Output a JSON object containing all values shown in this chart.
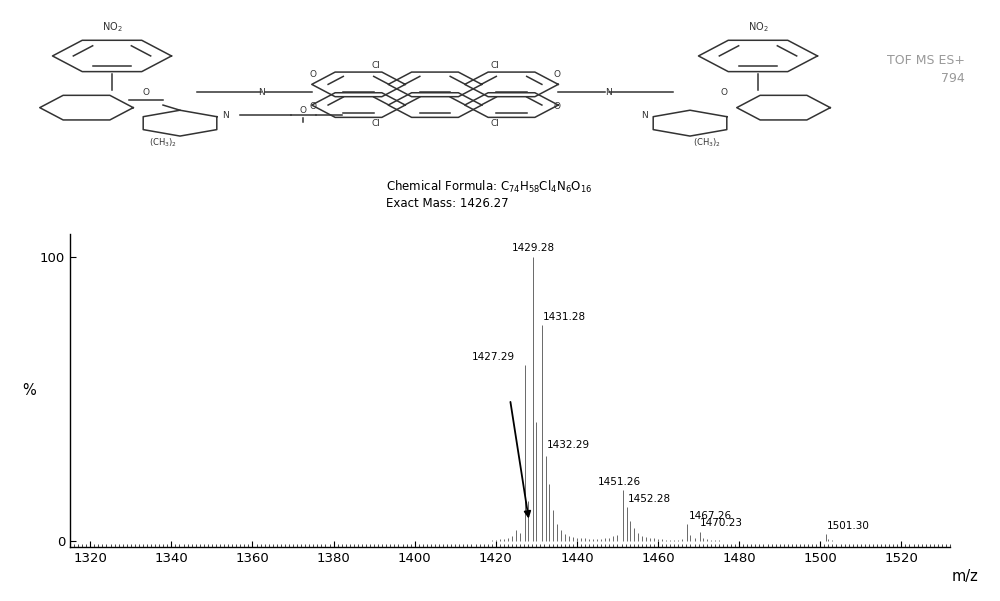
{
  "xlabel": "m/z",
  "ylabel": "%",
  "xlim": [
    1315,
    1532
  ],
  "ylim": [
    -2,
    108
  ],
  "xticks": [
    1320,
    1340,
    1360,
    1380,
    1400,
    1420,
    1440,
    1460,
    1480,
    1500,
    1520
  ],
  "background_color": "#ffffff",
  "tof_line1": "TOF MS ES+",
  "tof_line2": "794",
  "chem_formula": "Chemical Formula: C₇₄H₅₈Cl₄N₆O₁₆",
  "exact_mass": "Exact Mass: 1426.27",
  "peaks": [
    {
      "mz": 1320.0,
      "intensity": 0.15
    },
    {
      "mz": 1322.0,
      "intensity": 0.12
    },
    {
      "mz": 1324.0,
      "intensity": 0.1
    },
    {
      "mz": 1326.0,
      "intensity": 0.12
    },
    {
      "mz": 1328.0,
      "intensity": 0.1
    },
    {
      "mz": 1330.0,
      "intensity": 0.15
    },
    {
      "mz": 1332.0,
      "intensity": 0.1
    },
    {
      "mz": 1334.0,
      "intensity": 0.12
    },
    {
      "mz": 1336.0,
      "intensity": 0.1
    },
    {
      "mz": 1338.0,
      "intensity": 0.1
    },
    {
      "mz": 1340.0,
      "intensity": 0.15
    },
    {
      "mz": 1342.0,
      "intensity": 0.1
    },
    {
      "mz": 1344.0,
      "intensity": 0.1
    },
    {
      "mz": 1346.0,
      "intensity": 0.12
    },
    {
      "mz": 1348.0,
      "intensity": 0.1
    },
    {
      "mz": 1350.0,
      "intensity": 0.15
    },
    {
      "mz": 1352.0,
      "intensity": 0.1
    },
    {
      "mz": 1354.0,
      "intensity": 0.1
    },
    {
      "mz": 1356.0,
      "intensity": 0.12
    },
    {
      "mz": 1358.0,
      "intensity": 0.1
    },
    {
      "mz": 1360.0,
      "intensity": 0.15
    },
    {
      "mz": 1362.0,
      "intensity": 0.1
    },
    {
      "mz": 1364.0,
      "intensity": 0.1
    },
    {
      "mz": 1366.0,
      "intensity": 0.12
    },
    {
      "mz": 1368.0,
      "intensity": 0.1
    },
    {
      "mz": 1370.0,
      "intensity": 0.15
    },
    {
      "mz": 1372.0,
      "intensity": 0.1
    },
    {
      "mz": 1374.0,
      "intensity": 0.1
    },
    {
      "mz": 1376.0,
      "intensity": 0.12
    },
    {
      "mz": 1378.0,
      "intensity": 0.1
    },
    {
      "mz": 1380.0,
      "intensity": 0.15
    },
    {
      "mz": 1382.0,
      "intensity": 0.1
    },
    {
      "mz": 1384.0,
      "intensity": 0.1
    },
    {
      "mz": 1386.0,
      "intensity": 0.12
    },
    {
      "mz": 1388.0,
      "intensity": 0.1
    },
    {
      "mz": 1390.0,
      "intensity": 0.15
    },
    {
      "mz": 1392.0,
      "intensity": 0.1
    },
    {
      "mz": 1394.0,
      "intensity": 0.1
    },
    {
      "mz": 1396.0,
      "intensity": 0.12
    },
    {
      "mz": 1398.0,
      "intensity": 0.1
    },
    {
      "mz": 1400.0,
      "intensity": 0.2
    },
    {
      "mz": 1402.0,
      "intensity": 0.1
    },
    {
      "mz": 1404.0,
      "intensity": 0.1
    },
    {
      "mz": 1406.0,
      "intensity": 0.12
    },
    {
      "mz": 1408.0,
      "intensity": 0.1
    },
    {
      "mz": 1410.0,
      "intensity": 0.2
    },
    {
      "mz": 1412.0,
      "intensity": 0.12
    },
    {
      "mz": 1414.0,
      "intensity": 0.1
    },
    {
      "mz": 1416.0,
      "intensity": 0.12
    },
    {
      "mz": 1417.0,
      "intensity": 0.15
    },
    {
      "mz": 1418.0,
      "intensity": 0.25
    },
    {
      "mz": 1419.0,
      "intensity": 0.4
    },
    {
      "mz": 1420.0,
      "intensity": 0.6
    },
    {
      "mz": 1421.0,
      "intensity": 0.8
    },
    {
      "mz": 1422.0,
      "intensity": 0.7
    },
    {
      "mz": 1423.0,
      "intensity": 1.0
    },
    {
      "mz": 1424.0,
      "intensity": 2.0
    },
    {
      "mz": 1425.0,
      "intensity": 4.0
    },
    {
      "mz": 1426.0,
      "intensity": 3.0
    },
    {
      "mz": 1427.29,
      "intensity": 62.0
    },
    {
      "mz": 1428.0,
      "intensity": 14.0
    },
    {
      "mz": 1429.28,
      "intensity": 100.0
    },
    {
      "mz": 1430.0,
      "intensity": 42.0
    },
    {
      "mz": 1431.28,
      "intensity": 76.0
    },
    {
      "mz": 1432.29,
      "intensity": 30.0
    },
    {
      "mz": 1433.0,
      "intensity": 20.0
    },
    {
      "mz": 1434.0,
      "intensity": 11.0
    },
    {
      "mz": 1435.0,
      "intensity": 6.0
    },
    {
      "mz": 1436.0,
      "intensity": 4.0
    },
    {
      "mz": 1437.0,
      "intensity": 2.5
    },
    {
      "mz": 1438.0,
      "intensity": 2.0
    },
    {
      "mz": 1439.0,
      "intensity": 1.5
    },
    {
      "mz": 1440.0,
      "intensity": 1.3
    },
    {
      "mz": 1441.0,
      "intensity": 1.1
    },
    {
      "mz": 1442.0,
      "intensity": 1.0
    },
    {
      "mz": 1443.0,
      "intensity": 0.8
    },
    {
      "mz": 1444.0,
      "intensity": 0.7
    },
    {
      "mz": 1445.0,
      "intensity": 0.7
    },
    {
      "mz": 1446.0,
      "intensity": 0.8
    },
    {
      "mz": 1447.0,
      "intensity": 1.0
    },
    {
      "mz": 1448.0,
      "intensity": 1.3
    },
    {
      "mz": 1449.0,
      "intensity": 1.8
    },
    {
      "mz": 1450.0,
      "intensity": 2.2
    },
    {
      "mz": 1451.26,
      "intensity": 18.0
    },
    {
      "mz": 1452.28,
      "intensity": 12.0
    },
    {
      "mz": 1453.0,
      "intensity": 7.0
    },
    {
      "mz": 1454.0,
      "intensity": 4.5
    },
    {
      "mz": 1455.0,
      "intensity": 3.0
    },
    {
      "mz": 1456.0,
      "intensity": 2.0
    },
    {
      "mz": 1457.0,
      "intensity": 1.5
    },
    {
      "mz": 1458.0,
      "intensity": 1.2
    },
    {
      "mz": 1459.0,
      "intensity": 1.0
    },
    {
      "mz": 1460.0,
      "intensity": 0.8
    },
    {
      "mz": 1461.0,
      "intensity": 0.7
    },
    {
      "mz": 1462.0,
      "intensity": 0.6
    },
    {
      "mz": 1463.0,
      "intensity": 0.5
    },
    {
      "mz": 1464.0,
      "intensity": 0.5
    },
    {
      "mz": 1465.0,
      "intensity": 0.5
    },
    {
      "mz": 1466.0,
      "intensity": 0.7
    },
    {
      "mz": 1467.26,
      "intensity": 6.0
    },
    {
      "mz": 1468.0,
      "intensity": 2.2
    },
    {
      "mz": 1469.0,
      "intensity": 1.2
    },
    {
      "mz": 1470.23,
      "intensity": 3.2
    },
    {
      "mz": 1471.0,
      "intensity": 1.2
    },
    {
      "mz": 1472.0,
      "intensity": 0.7
    },
    {
      "mz": 1473.0,
      "intensity": 0.4
    },
    {
      "mz": 1474.0,
      "intensity": 0.3
    },
    {
      "mz": 1475.0,
      "intensity": 0.3
    },
    {
      "mz": 1476.0,
      "intensity": 0.2
    },
    {
      "mz": 1478.0,
      "intensity": 0.2
    },
    {
      "mz": 1480.0,
      "intensity": 0.2
    },
    {
      "mz": 1482.0,
      "intensity": 0.2
    },
    {
      "mz": 1484.0,
      "intensity": 0.2
    },
    {
      "mz": 1486.0,
      "intensity": 0.2
    },
    {
      "mz": 1488.0,
      "intensity": 0.2
    },
    {
      "mz": 1490.0,
      "intensity": 0.2
    },
    {
      "mz": 1492.0,
      "intensity": 0.2
    },
    {
      "mz": 1494.0,
      "intensity": 0.2
    },
    {
      "mz": 1496.0,
      "intensity": 0.2
    },
    {
      "mz": 1498.0,
      "intensity": 0.2
    },
    {
      "mz": 1500.0,
      "intensity": 0.2
    },
    {
      "mz": 1501.3,
      "intensity": 2.5
    },
    {
      "mz": 1502.0,
      "intensity": 0.9
    },
    {
      "mz": 1503.0,
      "intensity": 0.4
    },
    {
      "mz": 1504.0,
      "intensity": 0.2
    },
    {
      "mz": 1506.0,
      "intensity": 0.2
    },
    {
      "mz": 1508.0,
      "intensity": 0.2
    },
    {
      "mz": 1510.0,
      "intensity": 0.2
    },
    {
      "mz": 1512.0,
      "intensity": 0.2
    },
    {
      "mz": 1514.0,
      "intensity": 0.2
    },
    {
      "mz": 1516.0,
      "intensity": 0.2
    },
    {
      "mz": 1518.0,
      "intensity": 0.2
    },
    {
      "mz": 1520.0,
      "intensity": 0.2
    },
    {
      "mz": 1522.0,
      "intensity": 0.2
    },
    {
      "mz": 1524.0,
      "intensity": 0.2
    },
    {
      "mz": 1526.0,
      "intensity": 0.2
    },
    {
      "mz": 1528.0,
      "intensity": 0.2
    }
  ],
  "peak_color": "#696969",
  "label_fontsize": 7.5,
  "axis_fontsize": 9.5,
  "tof_color": "#999999"
}
